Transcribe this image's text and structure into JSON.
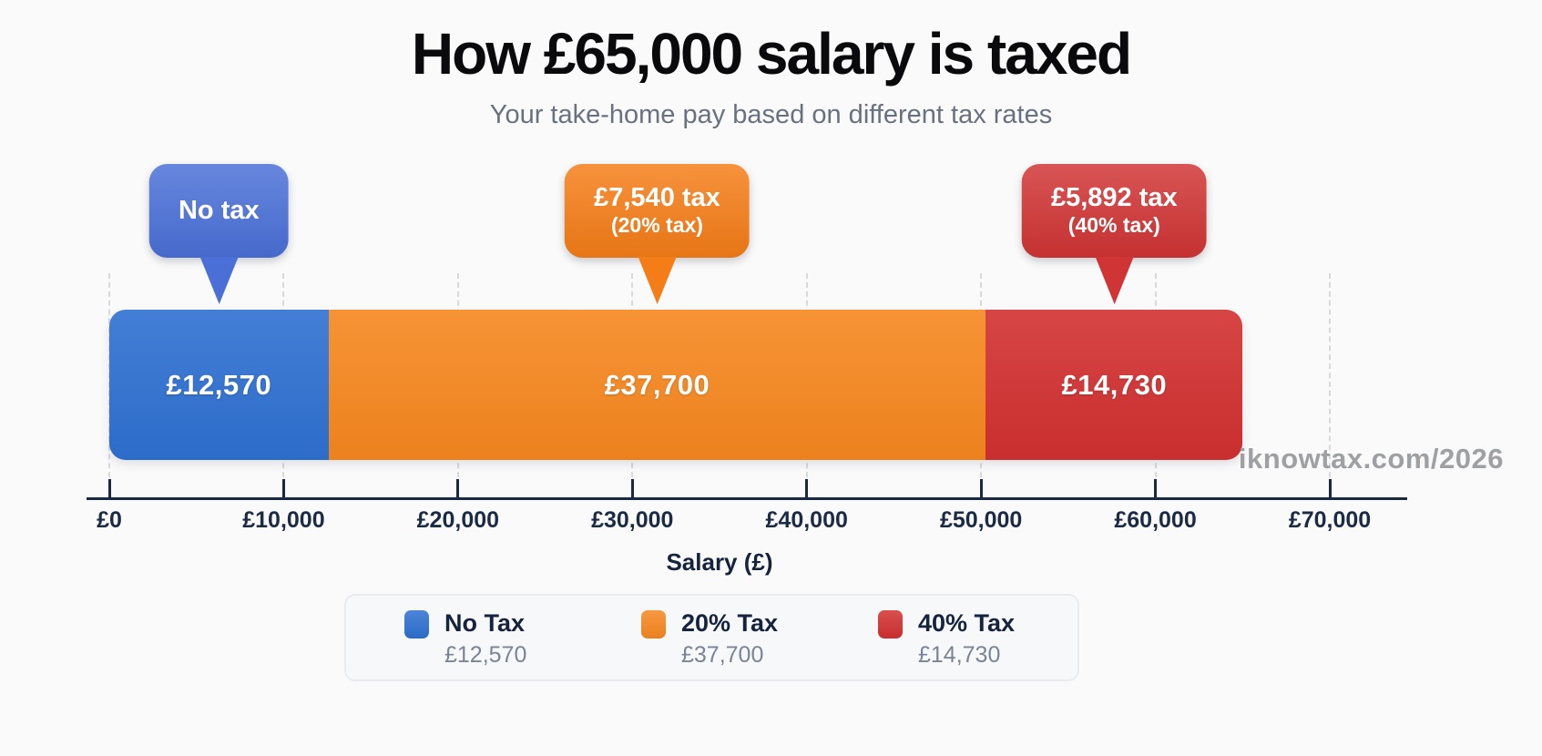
{
  "page": {
    "title": "How £65,000 salary is taxed",
    "subtitle": "Your take-home pay based on different tax rates",
    "watermark": "iknowtax.com/2026",
    "background": "#fafafa"
  },
  "chart_data": {
    "type": "bar",
    "variant": "horizontal-stacked",
    "title": "How £65,000 salary is taxed",
    "subtitle": "Your take-home pay based on different tax rates",
    "total_salary": 65000,
    "xlabel": "Salary (£)",
    "xlim": [
      0,
      70000
    ],
    "x_tick_values": [
      0,
      10000,
      20000,
      30000,
      40000,
      50000,
      60000,
      70000
    ],
    "x_tick_labels": [
      "£0",
      "£10,000",
      "£20,000",
      "£30,000",
      "£40,000",
      "£50,000",
      "£60,000",
      "£70,000"
    ],
    "grid": "vertical-dashed",
    "axis_color": "#1b2940",
    "legend_position": "bottom",
    "segments": [
      {
        "name": "No Tax",
        "value": 12570,
        "value_label": "£12,570",
        "color": "#2e70d1",
        "callout_line1": "No tax",
        "callout_line2": "",
        "callout_color": "#4a70d8"
      },
      {
        "name": "20% Tax",
        "value": 37700,
        "value_label": "£37,700",
        "color": "#f6871f",
        "callout_line1": "£7,540 tax",
        "callout_line2": "(20% tax)",
        "callout_color": "#f57d17"
      },
      {
        "name": "40% Tax",
        "value": 14730,
        "value_label": "£14,730",
        "color": "#d23030",
        "callout_line1": "£5,892 tax",
        "callout_line2": "(40% tax)",
        "callout_color": "#d13434"
      }
    ],
    "legend": [
      {
        "label": "No Tax",
        "value": "£12,570",
        "color": "#2e70d1"
      },
      {
        "label": "20% Tax",
        "value": "£37,700",
        "color": "#f6871f"
      },
      {
        "label": "40% Tax",
        "value": "£14,730",
        "color": "#d23030"
      }
    ]
  }
}
